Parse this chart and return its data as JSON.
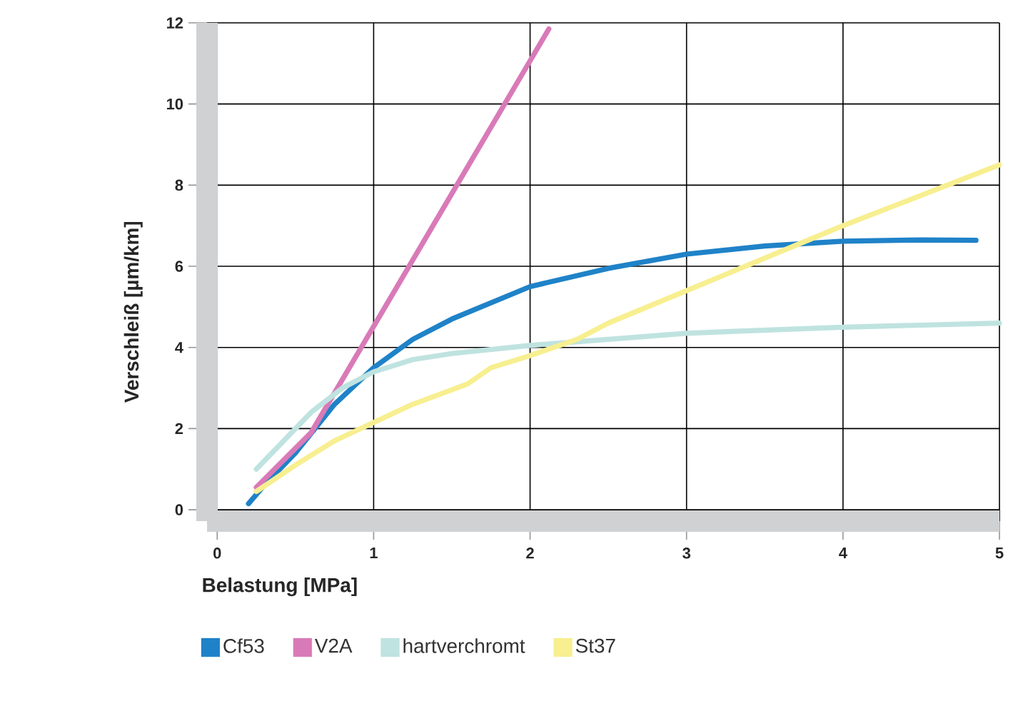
{
  "chart_data": {
    "type": "line",
    "xlabel": "Belastung [MPa]",
    "ylabel": "Verschleiß [µm/km]",
    "xlim": [
      -0.065,
      5
    ],
    "ylim": [
      -0.28,
      12
    ],
    "xticks": [
      0,
      1,
      2,
      3,
      4,
      5
    ],
    "yticks": [
      0,
      2,
      4,
      6,
      8,
      10,
      12
    ],
    "grid": true,
    "legend": "bottom",
    "marker": "none",
    "line_style": "solid",
    "series": [
      {
        "name": "Cf53",
        "color": "#1f82c8",
        "x": [
          0.2,
          0.3,
          0.5,
          0.75,
          1,
          1.25,
          1.5,
          2,
          2.5,
          3,
          3.5,
          4,
          4.5,
          4.85
        ],
        "values": [
          0.15,
          0.6,
          1.4,
          2.6,
          3.5,
          4.2,
          4.7,
          5.5,
          5.95,
          6.3,
          6.5,
          6.62,
          6.65,
          6.64
        ]
      },
      {
        "name": "V2A",
        "color": "#d97ab8",
        "x": [
          0.25,
          0.6,
          2.12
        ],
        "values": [
          0.55,
          1.9,
          11.85
        ]
      },
      {
        "name": "hartverchromt",
        "color": "#bfe3e0",
        "x": [
          0.25,
          0.4,
          0.6,
          0.8,
          1,
          1.25,
          1.5,
          2,
          2.5,
          3,
          4,
          5
        ],
        "values": [
          1.0,
          1.6,
          2.4,
          3.0,
          3.4,
          3.7,
          3.85,
          4.05,
          4.2,
          4.35,
          4.5,
          4.6
        ]
      },
      {
        "name": "St37",
        "color": "#f7ef90",
        "x": [
          0.25,
          0.5,
          0.75,
          1,
          1.25,
          1.6,
          1.75,
          2,
          2.3,
          2.5,
          3,
          3.5,
          4,
          4.5,
          5
        ],
        "values": [
          0.45,
          1.1,
          1.7,
          2.15,
          2.6,
          3.1,
          3.5,
          3.8,
          4.2,
          4.6,
          5.4,
          6.2,
          7.0,
          7.75,
          8.5
        ]
      }
    ]
  }
}
